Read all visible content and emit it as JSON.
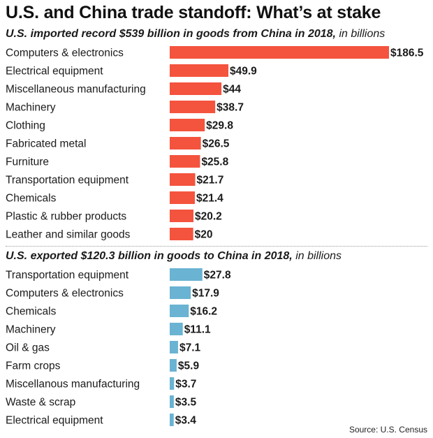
{
  "title": "U.S. and China trade standoff: What’s at stake",
  "source": "Source: U.S. Census",
  "colors": {
    "imports": "#f4533d",
    "exports": "#6ab3d2"
  },
  "chart_data": [
    {
      "type": "bar",
      "orientation": "horizontal",
      "title": "U.S. imported record $539 billion in goods from China in 2018,",
      "unit": "in billions",
      "value_prefix": "$",
      "categories": [
        "Computers & electronics",
        "Electrical equipment",
        "Miscellaneous manufacturing",
        "Machinery",
        "Clothing",
        "Fabricated metal",
        "Furniture",
        "Transportation equipment",
        "Chemicals",
        "Plastic & rubber products",
        "Leather and similar goods"
      ],
      "values": [
        186.5,
        49.9,
        44,
        38.7,
        29.8,
        26.5,
        25.8,
        21.7,
        21.4,
        20.2,
        20
      ],
      "color": "#f4533d"
    },
    {
      "type": "bar",
      "orientation": "horizontal",
      "title": "U.S. exported $120.3 billion in goods to China in 2018,",
      "unit": "in billions",
      "value_prefix": "$",
      "categories": [
        "Transportation equipment",
        "Computers & electronics",
        "Chemicals",
        "Machinery",
        "Oil & gas",
        "Farm crops",
        "Miscellanous manufacturing",
        "Waste & scrap",
        "Electrical equipment"
      ],
      "values": [
        27.8,
        17.9,
        16.2,
        11.1,
        7.1,
        5.9,
        3.7,
        3.5,
        3.4
      ],
      "color": "#6ab3d2"
    }
  ]
}
